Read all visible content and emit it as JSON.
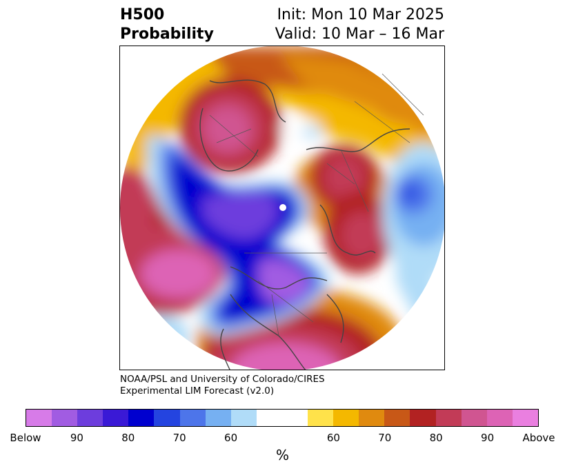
{
  "title": {
    "left_line1": "H500",
    "left_line2": "Probability",
    "right_line1": "Init: Mon 10 Mar 2025",
    "right_line2": "Valid: 10 Mar – 16 Mar"
  },
  "credit": {
    "line1": "NOAA/PSL and University of Colorado/CIRES",
    "line2": "Experimental LIM Forecast (v2.0)"
  },
  "colorbar": {
    "colors": [
      "#d77be8",
      "#a15ce2",
      "#6d3ddd",
      "#3a19d6",
      "#0000cf",
      "#2444e0",
      "#4d75ea",
      "#76b0f2",
      "#b0dcf8",
      "#ffffff",
      "#ffffff",
      "#ffe24a",
      "#f4b800",
      "#e08a0f",
      "#c85817",
      "#b22222",
      "#c23b57",
      "#d05591",
      "#dd63b5",
      "#ea7fe0"
    ],
    "ticks": [
      "Below",
      "90",
      "80",
      "70",
      "60",
      "60",
      "70",
      "80",
      "90",
      "Above"
    ],
    "unit": "%"
  },
  "map": {
    "projection": "north-polar-stereographic",
    "field": "500 hPa height anomaly probability",
    "features": [
      "above-normal center over Europe/Scandinavia",
      "above-normal center over eastern Siberia",
      "below-normal trough over Arctic and Canada",
      "above-normal ridge over North Pacific",
      "above-normal ridge over southeastern US / Caribbean",
      "below-normal center over North Africa"
    ]
  }
}
